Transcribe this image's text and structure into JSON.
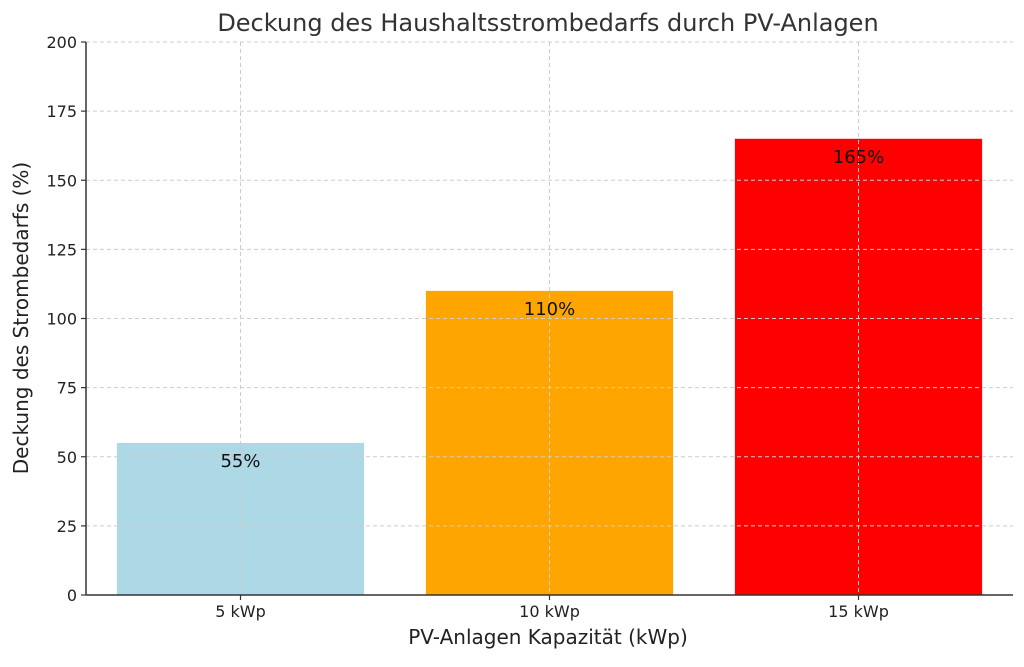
{
  "chart_data": {
    "type": "bar",
    "title": "Deckung des Haushaltsstrombedarfs durch PV-Anlagen",
    "xlabel": "PV-Anlagen Kapazität (kWp)",
    "ylabel": "Deckung des Strombedarfs (%)",
    "categories": [
      "5 kWp",
      "10 kWp",
      "15 kWp"
    ],
    "values": [
      55,
      110,
      165
    ],
    "data_labels": [
      "55%",
      "110%",
      "165%"
    ],
    "colors": [
      "#add8e6",
      "#ffa500",
      "#ff0000"
    ],
    "ylim": [
      0,
      200
    ],
    "yticks": [
      0,
      25,
      50,
      75,
      100,
      125,
      150,
      175,
      200
    ],
    "grid": true
  }
}
